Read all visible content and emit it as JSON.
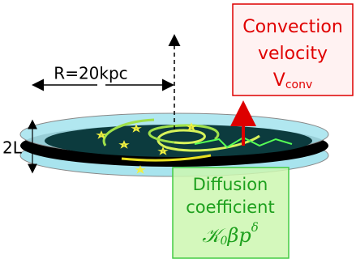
{
  "labels": {
    "radius": "R=20kpc",
    "height": "2L"
  },
  "convection": {
    "line1": "Convection",
    "line2": "velocity",
    "symbol": "V",
    "subscript": "conv"
  },
  "diffusion": {
    "line1": "Diffusion",
    "line2": "coefficient",
    "symbol": "𝒦",
    "subscript": "0",
    "rest": "βp",
    "superscript": "δ"
  }
}
